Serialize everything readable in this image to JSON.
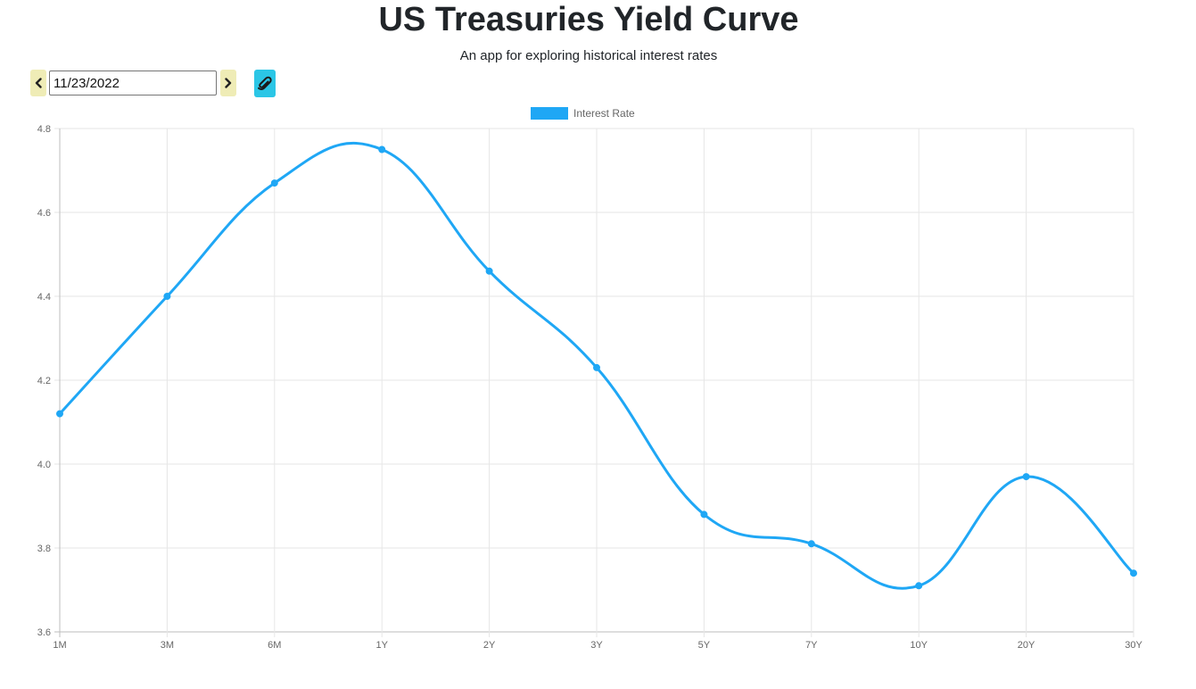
{
  "header": {
    "title": "US Treasuries Yield Curve",
    "subtitle": "An app for exploring historical interest rates"
  },
  "controls": {
    "date_value": "11/23/2022",
    "prev_icon": "chevron-left-icon",
    "next_icon": "chevron-right-icon",
    "attach_icon": "paperclip-icon"
  },
  "colors": {
    "line": "#1fa7f5",
    "nav_button": "#efecb6",
    "attach_button": "#2bc6e6",
    "grid": "#e6e6e6"
  },
  "chart_data": {
    "type": "line",
    "title": "",
    "xlabel": "",
    "ylabel": "",
    "categories": [
      "1M",
      "3M",
      "6M",
      "1Y",
      "2Y",
      "3Y",
      "5Y",
      "7Y",
      "10Y",
      "20Y",
      "30Y"
    ],
    "series": [
      {
        "name": "Interest Rate",
        "values": [
          4.12,
          4.4,
          4.67,
          4.75,
          4.46,
          4.23,
          3.88,
          3.81,
          3.71,
          3.97,
          3.74
        ]
      }
    ],
    "ylim": [
      3.6,
      4.8
    ],
    "yticks": [
      "4.8",
      "4.6",
      "4.4",
      "4.2",
      "4.0",
      "3.8",
      "3.6"
    ],
    "legend": "top-center",
    "grid": true
  }
}
